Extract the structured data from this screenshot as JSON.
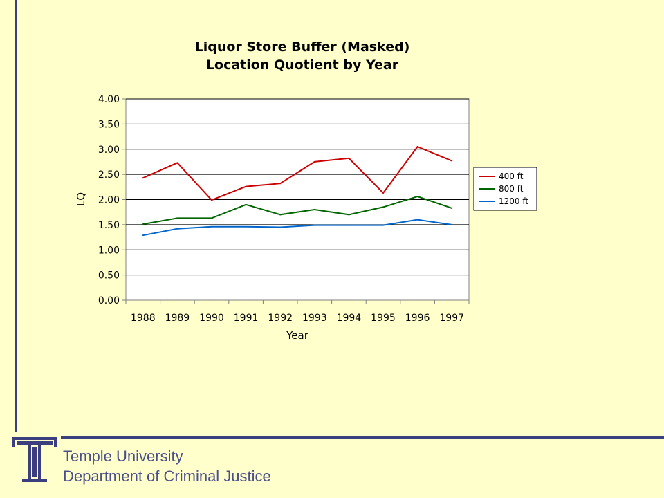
{
  "slide": {
    "background": "#FFFFCC",
    "accent": "#3B3F7F",
    "footer": {
      "university": "Temple University",
      "department": "Department of Criminal Justice"
    }
  },
  "chart_data": {
    "type": "line",
    "title": [
      "Liquor Store Buffer (Masked)",
      "Location Quotient by Year"
    ],
    "xlabel": "Year",
    "ylabel": "LQ",
    "categories": [
      "1988",
      "1989",
      "1990",
      "1991",
      "1992",
      "1993",
      "1994",
      "1995",
      "1996",
      "1997"
    ],
    "ylim": [
      0,
      4
    ],
    "yticks": [
      "0.00",
      "0.50",
      "1.00",
      "1.50",
      "2.00",
      "2.50",
      "3.00",
      "3.50",
      "4.00"
    ],
    "grid": true,
    "legend_position": "right",
    "series": [
      {
        "name": "400 ft",
        "color": "#CC0000",
        "values": [
          2.43,
          2.73,
          1.99,
          2.26,
          2.32,
          2.75,
          2.82,
          2.13,
          3.05,
          2.77
        ]
      },
      {
        "name": "800 ft",
        "color": "#006600",
        "values": [
          1.51,
          1.63,
          1.63,
          1.9,
          1.7,
          1.8,
          1.7,
          1.85,
          2.06,
          1.83
        ]
      },
      {
        "name": "1200 ft",
        "color": "#0066CC",
        "values": [
          1.29,
          1.42,
          1.46,
          1.46,
          1.45,
          1.49,
          1.49,
          1.49,
          1.6,
          1.5
        ]
      }
    ]
  }
}
